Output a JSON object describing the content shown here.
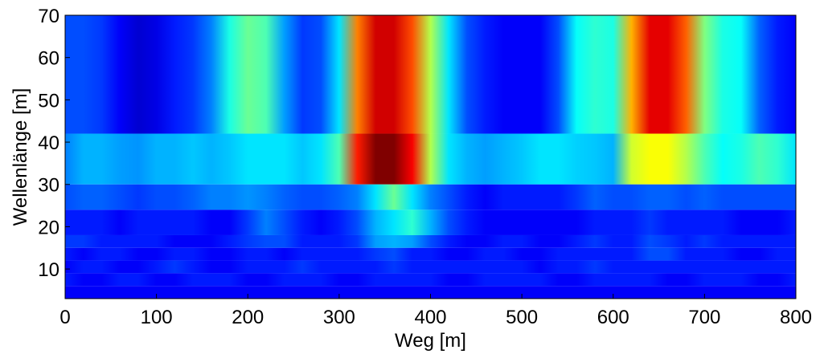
{
  "chart_data": {
    "type": "heatmap",
    "title": "",
    "xlabel": "Weg  [m]",
    "ylabel": "Wellenlänge  [m]",
    "xlim": [
      0,
      800
    ],
    "ylim": [
      3,
      70
    ],
    "xticks": [
      0,
      100,
      200,
      300,
      400,
      500,
      600,
      700,
      800
    ],
    "yticks": [
      10,
      20,
      30,
      40,
      50,
      60,
      70
    ],
    "colormap": "jet",
    "value_range": [
      0,
      1
    ],
    "grid": false,
    "legend": "none",
    "x": [
      0,
      20,
      40,
      60,
      80,
      100,
      120,
      140,
      160,
      180,
      200,
      220,
      240,
      260,
      280,
      300,
      320,
      340,
      360,
      380,
      400,
      420,
      440,
      460,
      480,
      500,
      520,
      540,
      560,
      580,
      600,
      620,
      640,
      660,
      680,
      700,
      720,
      740,
      760,
      780,
      800
    ],
    "bands": [
      {
        "wavelength_range": [
          42,
          70
        ],
        "values": [
          0.2,
          0.2,
          0.18,
          0.12,
          0.08,
          0.1,
          0.15,
          0.18,
          0.25,
          0.4,
          0.48,
          0.45,
          0.28,
          0.18,
          0.2,
          0.35,
          0.75,
          0.92,
          0.92,
          0.8,
          0.55,
          0.35,
          0.2,
          0.15,
          0.12,
          0.12,
          0.12,
          0.2,
          0.38,
          0.42,
          0.4,
          0.7,
          0.9,
          0.9,
          0.78,
          0.5,
          0.4,
          0.38,
          0.22,
          0.15,
          0.12
        ]
      },
      {
        "wavelength_range": [
          30,
          42
        ],
        "values": [
          0.25,
          0.3,
          0.3,
          0.28,
          0.27,
          0.3,
          0.3,
          0.32,
          0.3,
          0.32,
          0.35,
          0.35,
          0.35,
          0.32,
          0.35,
          0.45,
          0.85,
          1.0,
          1.0,
          0.88,
          0.55,
          0.35,
          0.3,
          0.28,
          0.3,
          0.32,
          0.35,
          0.35,
          0.33,
          0.32,
          0.3,
          0.58,
          0.62,
          0.62,
          0.55,
          0.45,
          0.38,
          0.4,
          0.45,
          0.42,
          0.35
        ]
      },
      {
        "wavelength_range": [
          24,
          30
        ],
        "values": [
          0.2,
          0.22,
          0.22,
          0.2,
          0.18,
          0.2,
          0.2,
          0.22,
          0.25,
          0.25,
          0.27,
          0.25,
          0.22,
          0.2,
          0.2,
          0.22,
          0.25,
          0.35,
          0.48,
          0.35,
          0.25,
          0.2,
          0.15,
          0.12,
          0.15,
          0.15,
          0.15,
          0.15,
          0.18,
          0.22,
          0.2,
          0.2,
          0.22,
          0.22,
          0.2,
          0.22,
          0.2,
          0.2,
          0.2,
          0.2,
          0.2
        ]
      },
      {
        "wavelength_range": [
          18,
          24
        ],
        "values": [
          0.15,
          0.15,
          0.15,
          0.12,
          0.15,
          0.15,
          0.15,
          0.15,
          0.12,
          0.12,
          0.18,
          0.25,
          0.2,
          0.15,
          0.12,
          0.15,
          0.2,
          0.3,
          0.35,
          0.42,
          0.3,
          0.2,
          0.15,
          0.12,
          0.12,
          0.12,
          0.12,
          0.12,
          0.12,
          0.15,
          0.15,
          0.15,
          0.18,
          0.15,
          0.15,
          0.15,
          0.15,
          0.12,
          0.12,
          0.12,
          0.15
        ]
      },
      {
        "wavelength_range": [
          15,
          18
        ],
        "values": [
          0.18,
          0.18,
          0.15,
          0.15,
          0.15,
          0.15,
          0.12,
          0.12,
          0.12,
          0.15,
          0.18,
          0.2,
          0.2,
          0.15,
          0.15,
          0.15,
          0.18,
          0.28,
          0.3,
          0.28,
          0.2,
          0.15,
          0.12,
          0.12,
          0.15,
          0.15,
          0.12,
          0.12,
          0.15,
          0.18,
          0.15,
          0.15,
          0.2,
          0.18,
          0.15,
          0.18,
          0.15,
          0.15,
          0.15,
          0.15,
          0.15
        ]
      },
      {
        "wavelength_range": [
          12,
          15
        ],
        "values": [
          0.15,
          0.12,
          0.15,
          0.15,
          0.12,
          0.12,
          0.15,
          0.15,
          0.12,
          0.12,
          0.15,
          0.15,
          0.12,
          0.15,
          0.15,
          0.15,
          0.15,
          0.18,
          0.2,
          0.15,
          0.15,
          0.12,
          0.12,
          0.15,
          0.15,
          0.12,
          0.12,
          0.15,
          0.15,
          0.15,
          0.15,
          0.15,
          0.2,
          0.2,
          0.15,
          0.15,
          0.15,
          0.12,
          0.12,
          0.15,
          0.15
        ]
      },
      {
        "wavelength_range": [
          9,
          12
        ],
        "values": [
          0.12,
          0.15,
          0.15,
          0.12,
          0.12,
          0.15,
          0.18,
          0.15,
          0.12,
          0.12,
          0.15,
          0.15,
          0.15,
          0.18,
          0.15,
          0.15,
          0.15,
          0.15,
          0.18,
          0.15,
          0.15,
          0.15,
          0.15,
          0.15,
          0.15,
          0.15,
          0.12,
          0.15,
          0.15,
          0.18,
          0.15,
          0.15,
          0.15,
          0.15,
          0.15,
          0.15,
          0.15,
          0.15,
          0.15,
          0.15,
          0.15
        ]
      },
      {
        "wavelength_range": [
          6,
          9
        ],
        "values": [
          0.15,
          0.12,
          0.12,
          0.15,
          0.15,
          0.12,
          0.12,
          0.15,
          0.15,
          0.15,
          0.12,
          0.12,
          0.15,
          0.15,
          0.15,
          0.12,
          0.12,
          0.15,
          0.15,
          0.15,
          0.15,
          0.12,
          0.12,
          0.15,
          0.15,
          0.15,
          0.15,
          0.12,
          0.12,
          0.15,
          0.15,
          0.15,
          0.15,
          0.12,
          0.12,
          0.15,
          0.15,
          0.15,
          0.12,
          0.12,
          0.15
        ]
      },
      {
        "wavelength_range": [
          3,
          6
        ],
        "values": [
          0.12,
          0.12,
          0.12,
          0.12,
          0.12,
          0.12,
          0.12,
          0.12,
          0.12,
          0.12,
          0.12,
          0.12,
          0.12,
          0.12,
          0.12,
          0.12,
          0.12,
          0.12,
          0.12,
          0.12,
          0.12,
          0.12,
          0.12,
          0.12,
          0.12,
          0.12,
          0.12,
          0.12,
          0.12,
          0.12,
          0.12,
          0.12,
          0.12,
          0.12,
          0.12,
          0.12,
          0.12,
          0.12,
          0.12,
          0.12,
          0.12
        ]
      }
    ]
  }
}
